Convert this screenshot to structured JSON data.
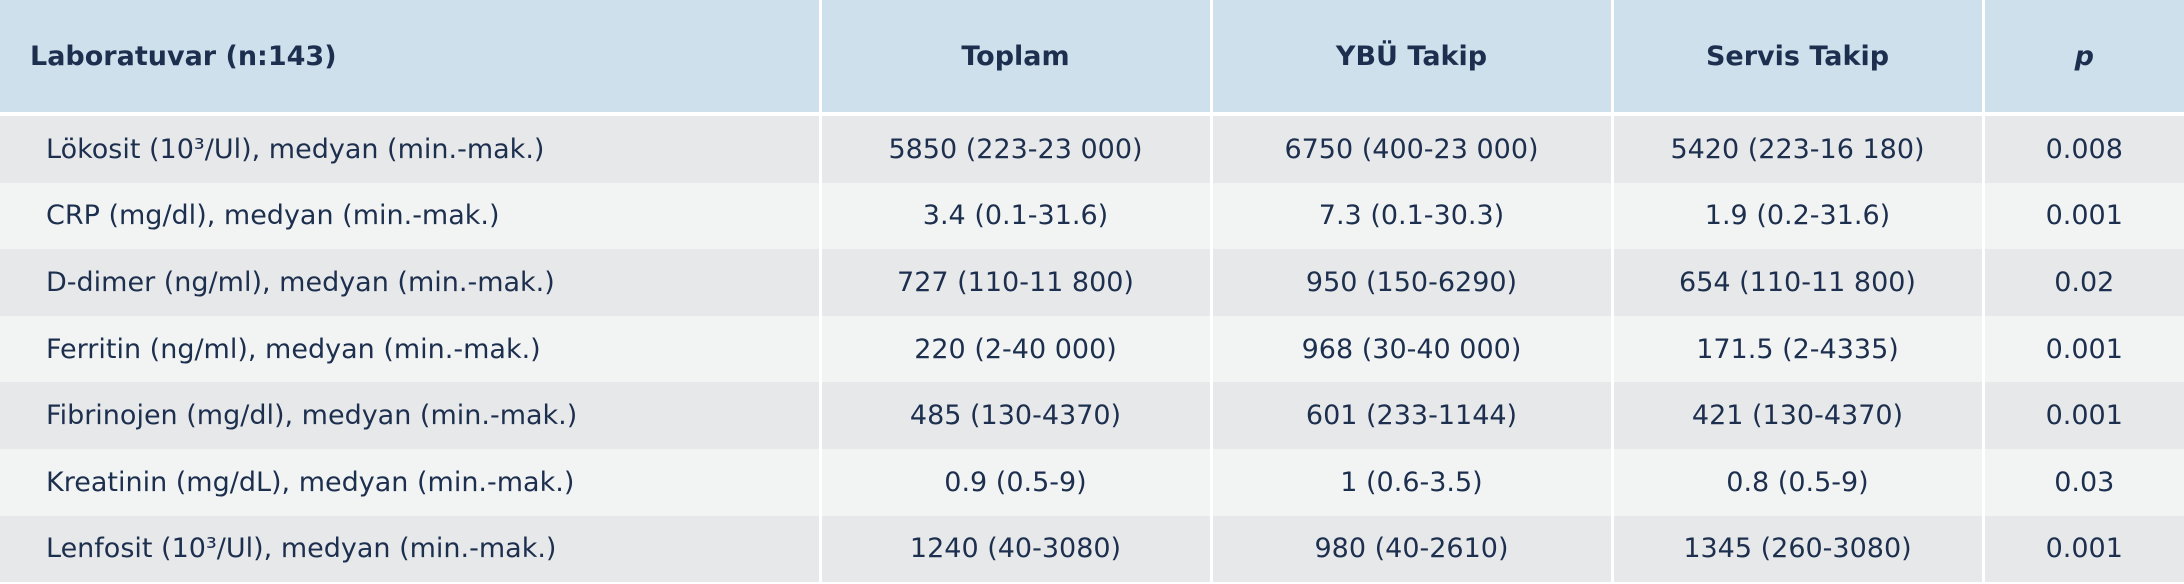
{
  "table": {
    "header": [
      "Laboratuvar (n:143)",
      "Toplam",
      "YBÜ Takip",
      "Servis Takip",
      "p"
    ],
    "rows": [
      [
        "Lökosit (10³/Ul), medyan (min.-mak.)",
        "5850 (223-23 000)",
        "6750 (400-23 000)",
        "5420 (223-16 180)",
        "0.008"
      ],
      [
        "CRP (mg/dl), medyan (min.-mak.)",
        "3.4 (0.1-31.6)",
        "7.3 (0.1-30.3)",
        "1.9 (0.2-31.6)",
        "0.001"
      ],
      [
        "D-dimer (ng/ml), medyan (min.-mak.)",
        "727 (110-11 800)",
        "950 (150-6290)",
        "654 (110-11 800)",
        "0.02"
      ],
      [
        "Ferritin (ng/ml), medyan (min.-mak.)",
        "220 (2-40 000)",
        "968 (30-40 000)",
        "171.5 (2-4335)",
        "0.001"
      ],
      [
        "Fibrinojen (mg/dl), medyan (min.-mak.)",
        "485 (130-4370)",
        "601 (233-1144)",
        "421 (130-4370)",
        "0.001"
      ],
      [
        "Kreatinin (mg/dL), medyan (min.-mak.)",
        "0.9 (0.5-9)",
        "1 (0.6-3.5)",
        "0.8 (0.5-9)",
        "0.03"
      ],
      [
        "Lenfosit (10³/Ul), medyan (min.-mak.)",
        "1240 (40-3080)",
        "980 (40-2610)",
        "1345 (260-3080)",
        "0.001"
      ]
    ]
  }
}
